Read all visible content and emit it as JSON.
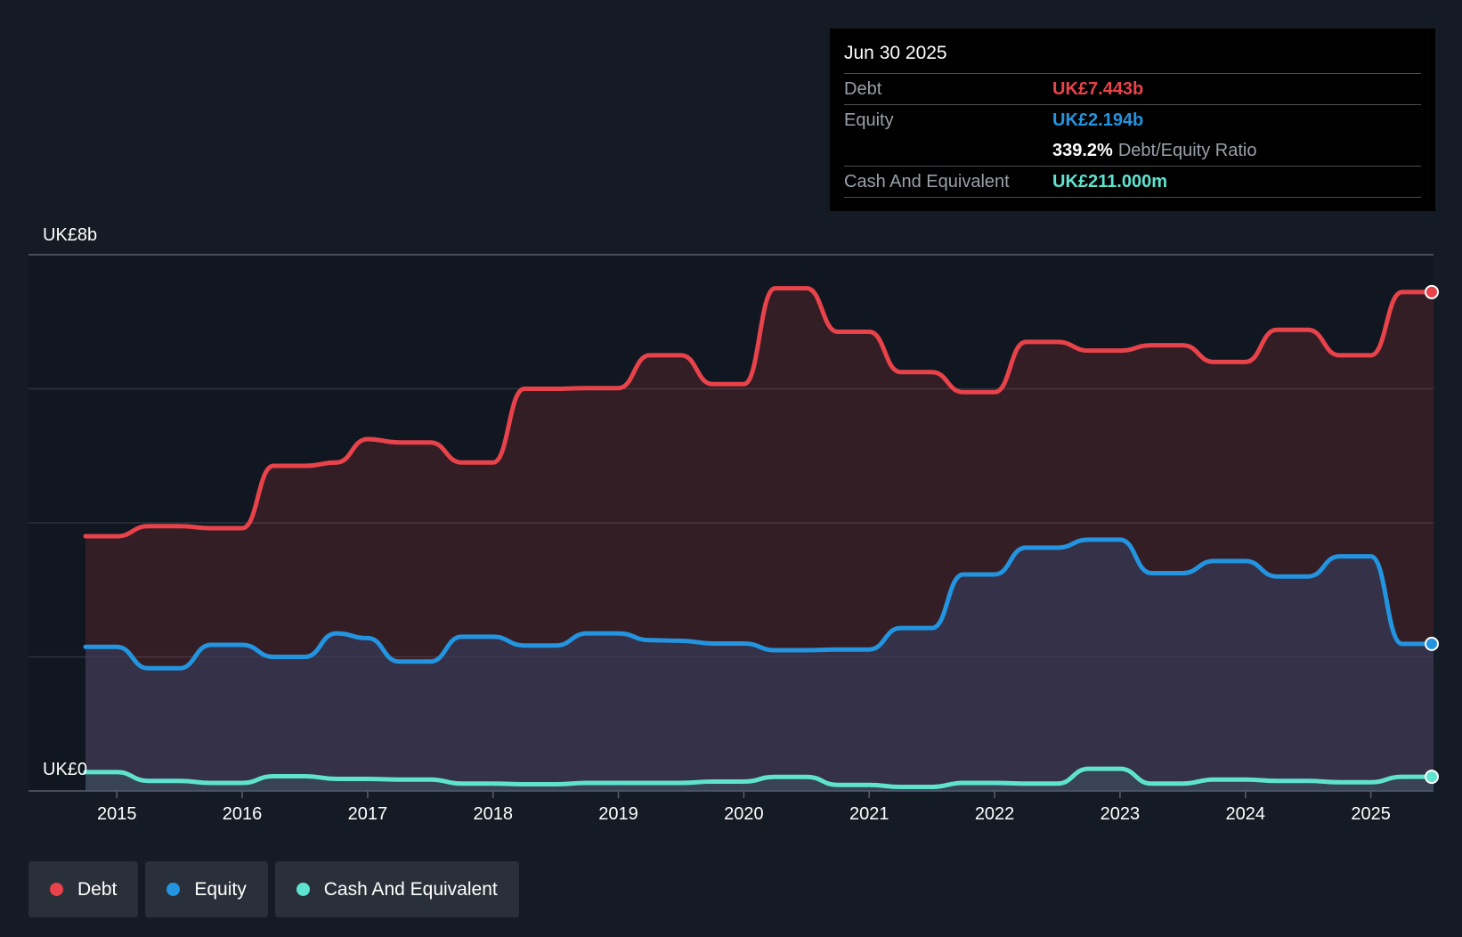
{
  "chart_data": {
    "type": "area",
    "title": "",
    "y_labels": {
      "top": "UK£8b",
      "bottom": "UK£0"
    },
    "ylim": [
      0,
      8
    ],
    "xlim": [
      2014.75,
      2025.5
    ],
    "x_ticks": [
      "2015",
      "2016",
      "2017",
      "2018",
      "2019",
      "2020",
      "2021",
      "2022",
      "2023",
      "2024",
      "2025"
    ],
    "x_tick_values": [
      2015,
      2016,
      2017,
      2018,
      2019,
      2020,
      2021,
      2022,
      2023,
      2024,
      2025
    ],
    "series": [
      {
        "name": "Debt",
        "color": "#e8424a",
        "fill": "rgba(232,66,74,0.16)",
        "points": [
          [
            2014.75,
            3.8
          ],
          [
            2015.0,
            3.8
          ],
          [
            2015.25,
            3.95
          ],
          [
            2015.5,
            3.95
          ],
          [
            2015.75,
            3.92
          ],
          [
            2016.0,
            3.92
          ],
          [
            2016.25,
            4.85
          ],
          [
            2016.5,
            4.85
          ],
          [
            2016.75,
            4.9
          ],
          [
            2017.0,
            5.25
          ],
          [
            2017.25,
            5.2
          ],
          [
            2017.5,
            5.2
          ],
          [
            2017.75,
            4.9
          ],
          [
            2018.0,
            4.9
          ],
          [
            2018.25,
            6.0
          ],
          [
            2018.5,
            6.0
          ],
          [
            2018.75,
            6.01
          ],
          [
            2019.0,
            6.01
          ],
          [
            2019.25,
            6.5
          ],
          [
            2019.5,
            6.5
          ],
          [
            2019.75,
            6.07
          ],
          [
            2020.0,
            6.07
          ],
          [
            2020.25,
            7.5
          ],
          [
            2020.5,
            7.5
          ],
          [
            2020.75,
            6.85
          ],
          [
            2021.0,
            6.85
          ],
          [
            2021.25,
            6.25
          ],
          [
            2021.5,
            6.25
          ],
          [
            2021.75,
            5.95
          ],
          [
            2022.0,
            5.95
          ],
          [
            2022.25,
            6.7
          ],
          [
            2022.5,
            6.7
          ],
          [
            2022.75,
            6.57
          ],
          [
            2023.0,
            6.57
          ],
          [
            2023.25,
            6.65
          ],
          [
            2023.5,
            6.65
          ],
          [
            2023.75,
            6.4
          ],
          [
            2024.0,
            6.4
          ],
          [
            2024.25,
            6.88
          ],
          [
            2024.5,
            6.88
          ],
          [
            2024.75,
            6.5
          ],
          [
            2025.0,
            6.5
          ],
          [
            2025.25,
            7.443
          ],
          [
            2025.5,
            7.443
          ]
        ]
      },
      {
        "name": "Equity",
        "color": "#2394df",
        "fill": "rgba(52,66,102,0.55)",
        "points": [
          [
            2014.75,
            2.15
          ],
          [
            2015.0,
            2.15
          ],
          [
            2015.25,
            1.83
          ],
          [
            2015.5,
            1.83
          ],
          [
            2015.75,
            2.18
          ],
          [
            2016.0,
            2.18
          ],
          [
            2016.25,
            2.0
          ],
          [
            2016.5,
            2.0
          ],
          [
            2016.75,
            2.35
          ],
          [
            2017.0,
            2.28
          ],
          [
            2017.25,
            1.93
          ],
          [
            2017.5,
            1.93
          ],
          [
            2017.75,
            2.3
          ],
          [
            2018.0,
            2.3
          ],
          [
            2018.25,
            2.17
          ],
          [
            2018.5,
            2.17
          ],
          [
            2018.75,
            2.35
          ],
          [
            2019.0,
            2.35
          ],
          [
            2019.25,
            2.25
          ],
          [
            2019.5,
            2.24
          ],
          [
            2019.75,
            2.2
          ],
          [
            2020.0,
            2.2
          ],
          [
            2020.25,
            2.1
          ],
          [
            2020.5,
            2.1
          ],
          [
            2020.75,
            2.11
          ],
          [
            2021.0,
            2.11
          ],
          [
            2021.25,
            2.43
          ],
          [
            2021.5,
            2.43
          ],
          [
            2021.75,
            3.23
          ],
          [
            2022.0,
            3.23
          ],
          [
            2022.25,
            3.63
          ],
          [
            2022.5,
            3.63
          ],
          [
            2022.75,
            3.75
          ],
          [
            2023.0,
            3.75
          ],
          [
            2023.25,
            3.25
          ],
          [
            2023.5,
            3.25
          ],
          [
            2023.75,
            3.43
          ],
          [
            2024.0,
            3.43
          ],
          [
            2024.25,
            3.2
          ],
          [
            2024.5,
            3.2
          ],
          [
            2024.75,
            3.5
          ],
          [
            2025.0,
            3.5
          ],
          [
            2025.25,
            2.194
          ],
          [
            2025.5,
            2.194
          ]
        ]
      },
      {
        "name": "Cash And Equivalent",
        "color": "#5fe3cf",
        "fill": "rgba(95,227,207,0.10)",
        "points": [
          [
            2014.75,
            0.28
          ],
          [
            2015.0,
            0.28
          ],
          [
            2015.25,
            0.15
          ],
          [
            2015.5,
            0.15
          ],
          [
            2015.75,
            0.12
          ],
          [
            2016.0,
            0.12
          ],
          [
            2016.25,
            0.22
          ],
          [
            2016.5,
            0.22
          ],
          [
            2016.75,
            0.18
          ],
          [
            2017.0,
            0.18
          ],
          [
            2017.25,
            0.17
          ],
          [
            2017.5,
            0.17
          ],
          [
            2017.75,
            0.11
          ],
          [
            2018.0,
            0.11
          ],
          [
            2018.25,
            0.1
          ],
          [
            2018.5,
            0.1
          ],
          [
            2018.75,
            0.12
          ],
          [
            2019.0,
            0.12
          ],
          [
            2019.25,
            0.12
          ],
          [
            2019.5,
            0.12
          ],
          [
            2019.75,
            0.14
          ],
          [
            2020.0,
            0.14
          ],
          [
            2020.25,
            0.21
          ],
          [
            2020.5,
            0.21
          ],
          [
            2020.75,
            0.09
          ],
          [
            2021.0,
            0.09
          ],
          [
            2021.25,
            0.06
          ],
          [
            2021.5,
            0.06
          ],
          [
            2021.75,
            0.12
          ],
          [
            2022.0,
            0.12
          ],
          [
            2022.25,
            0.11
          ],
          [
            2022.5,
            0.11
          ],
          [
            2022.75,
            0.33
          ],
          [
            2023.0,
            0.33
          ],
          [
            2023.25,
            0.11
          ],
          [
            2023.5,
            0.11
          ],
          [
            2023.75,
            0.17
          ],
          [
            2024.0,
            0.17
          ],
          [
            2024.25,
            0.15
          ],
          [
            2024.5,
            0.15
          ],
          [
            2024.75,
            0.13
          ],
          [
            2025.0,
            0.13
          ],
          [
            2025.25,
            0.211
          ],
          [
            2025.5,
            0.211
          ]
        ]
      }
    ],
    "gridlines": [
      0,
      2,
      4,
      6,
      8
    ]
  },
  "tooltip": {
    "date": "Jun 30 2025",
    "debt_label": "Debt",
    "debt_value": "UK£7.443b",
    "equity_label": "Equity",
    "equity_value": "UK£2.194b",
    "ratio_value": "339.2%",
    "ratio_label": "Debt/Equity Ratio",
    "cash_label": "Cash And Equivalent",
    "cash_value": "UK£211.000m"
  },
  "legend": [
    {
      "label": "Debt",
      "color": "#e8424a"
    },
    {
      "label": "Equity",
      "color": "#2394df"
    },
    {
      "label": "Cash And Equivalent",
      "color": "#5fe3cf"
    }
  ]
}
